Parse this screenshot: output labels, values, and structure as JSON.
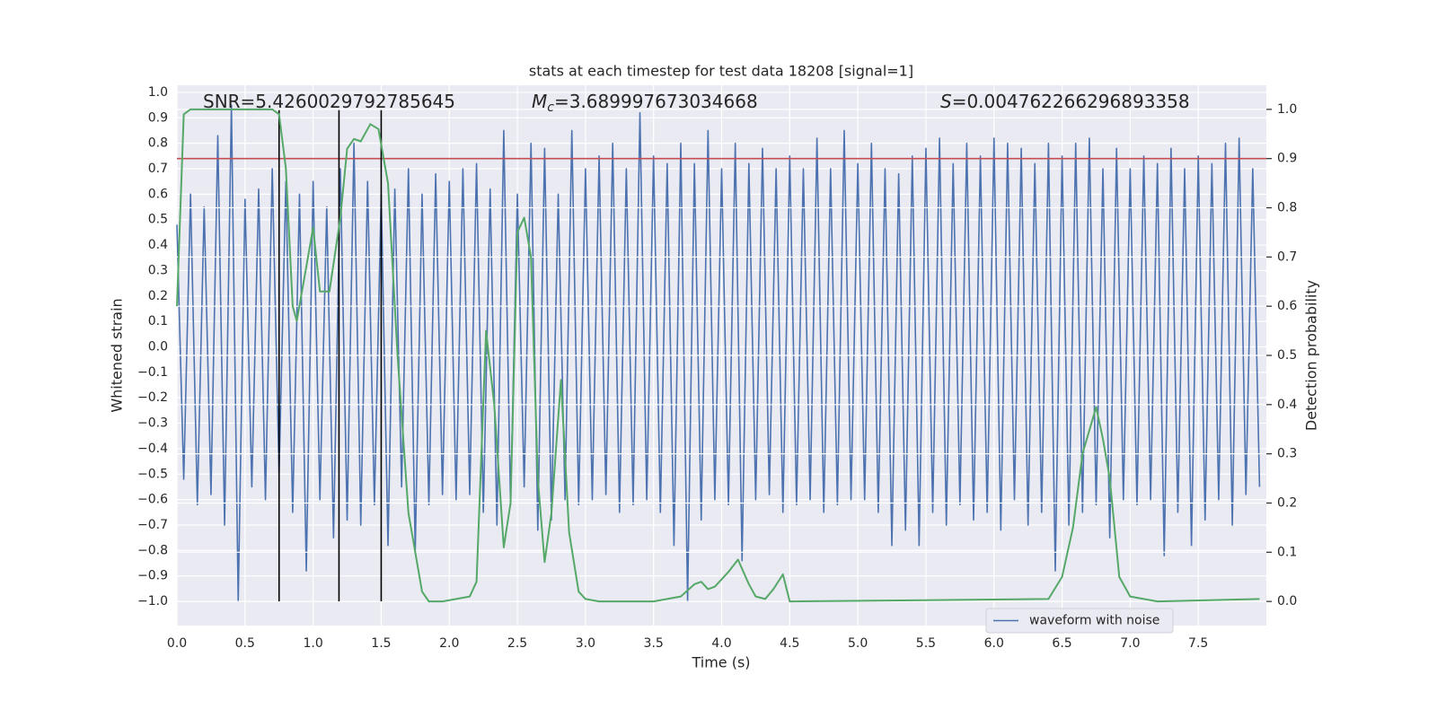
{
  "chart_data": {
    "type": "line",
    "title": "stats at each timestep for test data 18208 [signal=1]",
    "xlabel": "Time (s)",
    "ylabel": "Whitened strain",
    "y2label": "Detection probability",
    "xlim": [
      0,
      8
    ],
    "ylim": [
      -1.095,
      1.028
    ],
    "y2lim": [
      -0.049,
      1.049
    ],
    "xticks": [
      {
        "value": 0,
        "label": "0.0"
      },
      0.5,
      {
        "value": 1,
        "label": "1.0"
      },
      1.5,
      {
        "value": 2,
        "label": "2.0"
      },
      2.5,
      {
        "value": 3,
        "label": "3.0"
      },
      3.5,
      {
        "value": 4,
        "label": "4.0"
      },
      4.5,
      {
        "value": 5,
        "label": "5.0"
      },
      5.5,
      {
        "value": 6,
        "label": "6.0"
      },
      6.5,
      {
        "value": 7,
        "label": "7.0"
      },
      7.5
    ],
    "yticks": [
      {
        "value": -1,
        "label": "−1.0"
      },
      {
        "value": -0.9,
        "label": "−0.9"
      },
      {
        "value": -0.8,
        "label": "−0.8"
      },
      {
        "value": -0.7,
        "label": "−0.7"
      },
      {
        "value": -0.6,
        "label": "−0.6"
      },
      {
        "value": -0.5,
        "label": "−0.5"
      },
      {
        "value": -0.4,
        "label": "−0.4"
      },
      {
        "value": -0.3,
        "label": "−0.3"
      },
      {
        "value": -0.2,
        "label": "−0.2"
      },
      {
        "value": -0.1,
        "label": "−0.1"
      },
      {
        "value": 0,
        "label": "0.0"
      },
      0.1,
      0.2,
      0.3,
      0.4,
      0.5,
      0.6,
      0.7,
      0.8,
      0.9,
      {
        "value": 1,
        "label": "1.0"
      }
    ],
    "y2ticks": [
      {
        "value": 0,
        "label": "0.0"
      },
      0.1,
      0.2,
      0.3,
      0.4,
      0.5,
      0.6,
      0.7,
      0.8,
      0.9,
      {
        "value": 1,
        "label": "1.0"
      }
    ],
    "grid": true,
    "legend": "lower right",
    "annotations": [
      {
        "text": "SNR=5.4260029792785645"
      },
      {
        "symbol": "M",
        "subscript": "c",
        "text": "=3.689997673034668"
      },
      {
        "symbol": "S",
        "text": "=0.004762266296893358"
      }
    ],
    "series": [
      {
        "name": "waveform with noise",
        "color": "#4c72b0",
        "x": [
          0,
          0.05,
          0.1,
          0.15,
          0.2,
          0.25,
          0.3,
          0.35,
          0.4,
          0.45,
          0.5,
          0.55,
          0.6,
          0.65,
          0.7,
          0.75,
          0.8,
          0.85,
          0.9,
          0.95,
          1,
          1.05,
          1.1,
          1.15,
          1.2,
          1.25,
          1.3,
          1.35,
          1.4,
          1.45,
          1.5,
          1.55,
          1.6,
          1.65,
          1.7,
          1.75,
          1.8,
          1.85,
          1.9,
          1.95,
          2,
          2.05,
          2.1,
          2.15,
          2.2,
          2.25,
          2.3,
          2.35,
          2.4,
          2.45,
          2.5,
          2.55,
          2.6,
          2.65,
          2.7,
          2.75,
          2.8,
          2.85,
          2.9,
          2.95,
          3,
          3.05,
          3.1,
          3.15,
          3.2,
          3.25,
          3.3,
          3.35,
          3.4,
          3.45,
          3.5,
          3.55,
          3.6,
          3.65,
          3.7,
          3.75,
          3.8,
          3.85,
          3.9,
          3.95,
          4,
          4.05,
          4.1,
          4.15,
          4.2,
          4.25,
          4.3,
          4.35,
          4.4,
          4.45,
          4.5,
          4.55,
          4.6,
          4.65,
          4.7,
          4.75,
          4.8,
          4.85,
          4.9,
          4.95,
          5,
          5.05,
          5.1,
          5.15,
          5.2,
          5.25,
          5.3,
          5.35,
          5.4,
          5.45,
          5.5,
          5.55,
          5.6,
          5.65,
          5.7,
          5.75,
          5.8,
          5.85,
          5.9,
          5.95,
          6,
          6.05,
          6.1,
          6.15,
          6.2,
          6.25,
          6.3,
          6.35,
          6.4,
          6.45,
          6.5,
          6.55,
          6.6,
          6.65,
          6.7,
          6.75,
          6.8,
          6.85,
          6.9,
          6.95,
          7,
          7.05,
          7.1,
          7.15,
          7.2,
          7.25,
          7.3,
          7.35,
          7.4,
          7.45,
          7.5,
          7.55,
          7.6,
          7.65,
          7.7,
          7.75,
          7.8,
          7.85,
          7.9,
          7.95
        ],
        "values": [
          0.48,
          -0.52,
          0.6,
          -0.62,
          0.55,
          -0.58,
          0.83,
          -0.7,
          0.95,
          -1.0,
          0.58,
          -0.55,
          0.62,
          -0.6,
          0.7,
          -0.5,
          0.65,
          -0.65,
          0.6,
          -0.88,
          0.65,
          -0.6,
          0.55,
          -0.75,
          0.7,
          -0.68,
          0.8,
          -0.7,
          0.65,
          -0.62,
          0.6,
          -0.78,
          0.62,
          -0.55,
          0.7,
          -0.8,
          0.6,
          -0.62,
          0.68,
          -0.58,
          0.65,
          -0.6,
          0.7,
          -0.58,
          0.72,
          -0.65,
          0.62,
          -0.7,
          0.85,
          -0.62,
          0.6,
          -0.55,
          0.8,
          -0.72,
          0.78,
          -0.68,
          0.6,
          -0.6,
          0.85,
          -0.62,
          0.7,
          -0.6,
          0.75,
          -0.58,
          0.8,
          -0.65,
          0.7,
          -0.62,
          0.92,
          -0.6,
          0.75,
          -0.65,
          0.72,
          -0.78,
          0.8,
          -1.0,
          0.72,
          -0.68,
          0.85,
          -0.6,
          0.7,
          -0.62,
          0.8,
          -0.84,
          0.72,
          -0.6,
          0.78,
          -0.58,
          0.7,
          -0.65,
          0.75,
          -0.62,
          0.7,
          -0.6,
          0.82,
          -0.65,
          0.7,
          -0.62,
          0.85,
          -0.6,
          0.72,
          -0.6,
          0.8,
          -0.65,
          0.7,
          -0.78,
          0.68,
          -0.72,
          0.75,
          -0.78,
          0.78,
          -0.65,
          0.82,
          -0.7,
          0.72,
          -0.62,
          0.8,
          -0.68,
          0.75,
          -0.65,
          0.82,
          -0.72,
          0.8,
          -0.6,
          0.78,
          -0.7,
          0.72,
          -0.65,
          0.8,
          -0.88,
          0.75,
          -0.7,
          0.8,
          -0.65,
          0.82,
          -0.62,
          0.7,
          -0.75,
          0.78,
          -0.6,
          0.7,
          -0.62,
          0.75,
          -0.6,
          0.72,
          -0.82,
          0.78,
          -0.65,
          0.7,
          -0.78,
          0.75,
          -0.68,
          0.72,
          -0.6,
          0.8,
          -0.7,
          0.82,
          -0.58,
          0.7,
          -0.55
        ]
      },
      {
        "color": "#55a868",
        "axis": "y2",
        "x": [
          0,
          0.05,
          0.1,
          0.7,
          0.75,
          0.8,
          0.85,
          0.88,
          0.95,
          1.0,
          1.05,
          1.12,
          1.2,
          1.25,
          1.3,
          1.35,
          1.42,
          1.48,
          1.55,
          1.62,
          1.7,
          1.8,
          1.85,
          1.95,
          2.05,
          2.15,
          2.2,
          2.27,
          2.33,
          2.4,
          2.45,
          2.5,
          2.55,
          2.6,
          2.65,
          2.7,
          2.75,
          2.82,
          2.88,
          2.95,
          3.0,
          3.1,
          3.5,
          3.6,
          3.7,
          3.8,
          3.85,
          3.9,
          3.95,
          4.05,
          4.12,
          4.2,
          4.25,
          4.32,
          4.38,
          4.45,
          4.5,
          6.4,
          6.5,
          6.58,
          6.65,
          6.75,
          6.8,
          6.85,
          6.92,
          7.0,
          7.2,
          7.95
        ],
        "values": [
          0.6,
          0.99,
          1.0,
          1.0,
          0.99,
          0.88,
          0.6,
          0.57,
          0.68,
          0.76,
          0.63,
          0.63,
          0.78,
          0.92,
          0.94,
          0.935,
          0.97,
          0.96,
          0.85,
          0.5,
          0.18,
          0.02,
          0.0,
          0.0,
          0.005,
          0.01,
          0.04,
          0.55,
          0.4,
          0.11,
          0.2,
          0.75,
          0.78,
          0.7,
          0.25,
          0.08,
          0.18,
          0.45,
          0.14,
          0.02,
          0.005,
          0.0,
          0.0,
          0.005,
          0.01,
          0.035,
          0.04,
          0.025,
          0.03,
          0.06,
          0.085,
          0.035,
          0.01,
          0.005,
          0.025,
          0.055,
          0.0,
          0.005,
          0.05,
          0.15,
          0.3,
          0.395,
          0.33,
          0.25,
          0.05,
          0.01,
          0.0,
          0.005
        ]
      }
    ],
    "threshold": {
      "value": 0.9,
      "axis": "y2",
      "color": "#c44e52"
    },
    "vlines": {
      "x": [
        0.75,
        1.19,
        1.5
      ],
      "ymin": -1.0,
      "ymax": 0.93,
      "color": "#000000"
    }
  }
}
